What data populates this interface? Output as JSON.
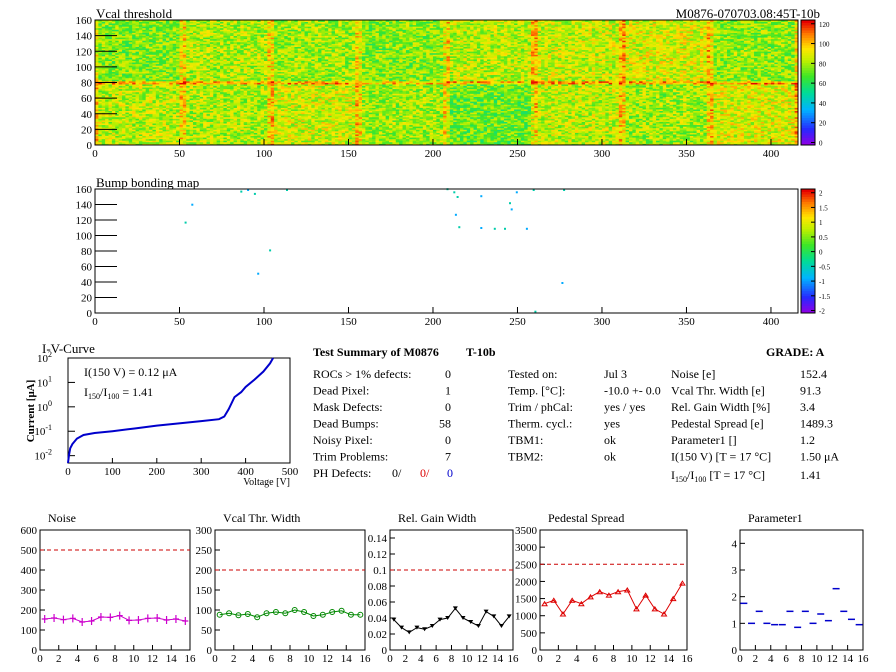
{
  "header": {
    "vcal_title": "Vcal threshold",
    "module_id": "M0876-070703.08:45T-10b",
    "bump_title": "Bump bonding map"
  },
  "chart_data": [
    {
      "type": "heatmap",
      "name": "vcal",
      "title": "Vcal threshold",
      "xlim": [
        0,
        416
      ],
      "ylim": [
        0,
        160
      ],
      "xticks": [
        "0",
        "50",
        "100",
        "150",
        "200",
        "250",
        "300",
        "350",
        "400"
      ],
      "yticks": [
        "0",
        "20",
        "40",
        "60",
        "80",
        "100",
        "120",
        "140",
        "160"
      ],
      "colorbar_ticks": [
        "0",
        "20",
        "40",
        "60",
        "80",
        "100",
        "120"
      ],
      "colorbar_max": 135,
      "roc_base_values": [
        92,
        90,
        95,
        88,
        80,
        93,
        88,
        97,
        84,
        90,
        88,
        84,
        92,
        94,
        97,
        86
      ]
    },
    {
      "type": "heatmap",
      "name": "bump",
      "title": "Bump bonding map",
      "xlim": [
        0,
        416
      ],
      "ylim": [
        0,
        160
      ],
      "xticks": [
        "0",
        "50",
        "100",
        "150",
        "200",
        "250",
        "300",
        "350",
        "400"
      ],
      "yticks": [
        "0",
        "20",
        "40",
        "60",
        "80",
        "100",
        "120",
        "140",
        "160"
      ],
      "colorbar_ticks": [
        "-2",
        "-1.5",
        "-1",
        "-0.5",
        "0",
        "0.5",
        "1",
        "1.5",
        "2"
      ],
      "points": [
        [
          57,
          141
        ],
        [
          53,
          118
        ],
        [
          86,
          158
        ],
        [
          90,
          160
        ],
        [
          94,
          155
        ],
        [
          103,
          82
        ],
        [
          96,
          52
        ],
        [
          113,
          160
        ],
        [
          208,
          161
        ],
        [
          212,
          157
        ],
        [
          214,
          151
        ],
        [
          213,
          128
        ],
        [
          215,
          112
        ],
        [
          245,
          143
        ],
        [
          246,
          135
        ],
        [
          249,
          157
        ],
        [
          255,
          110
        ],
        [
          259,
          160
        ],
        [
          260,
          3
        ],
        [
          228,
          111
        ],
        [
          236,
          110
        ],
        [
          242,
          110
        ],
        [
          228,
          152
        ],
        [
          277,
          160
        ],
        [
          276,
          40
        ]
      ]
    },
    {
      "type": "line",
      "name": "iv",
      "title": "I-V-Curve",
      "xlabel": "Voltage [V]",
      "ylabel": "Current [μA]",
      "xlim": [
        0,
        500
      ],
      "ylog": true,
      "ylim": [
        0.005,
        100
      ],
      "xticks": [
        "0",
        "100",
        "200",
        "300",
        "400",
        "500"
      ],
      "x": [
        0,
        2,
        5,
        10,
        20,
        35,
        60,
        100,
        150,
        200,
        250,
        300,
        340,
        352,
        362,
        375,
        390,
        400,
        420,
        440,
        455,
        462
      ],
      "y": [
        0.005,
        0.01,
        0.02,
        0.03,
        0.05,
        0.07,
        0.085,
        0.1,
        0.13,
        0.17,
        0.21,
        0.26,
        0.31,
        0.4,
        0.8,
        2.5,
        4,
        6.5,
        13,
        28,
        60,
        100
      ],
      "annotation_1": "I(150 V) = 0.12 μA",
      "annotation_2_main": "I",
      "annotation_2_sub1": "150",
      "annotation_2_mid": "/I",
      "annotation_2_sub2": "100",
      "annotation_2_value": "=  1.41"
    },
    {
      "type": "line",
      "name": "noise",
      "title": "Noise",
      "x": [
        0,
        1,
        2,
        3,
        4,
        5,
        6,
        7,
        8,
        9,
        10,
        11,
        12,
        13,
        14,
        15
      ],
      "values": [
        155,
        160,
        152,
        158,
        140,
        145,
        165,
        163,
        172,
        148,
        150,
        158,
        160,
        150,
        155,
        145
      ],
      "ylim": [
        0,
        600
      ],
      "yticks": [
        "0",
        "100",
        "200",
        "300",
        "400",
        "500",
        "600"
      ],
      "threshold": 500,
      "color": "#cc00cc"
    },
    {
      "type": "line",
      "name": "vcalwidth",
      "title": "Vcal Thr. Width",
      "x": [
        0,
        1,
        2,
        3,
        4,
        5,
        6,
        7,
        8,
        9,
        10,
        11,
        12,
        13,
        14,
        15
      ],
      "values": [
        88,
        92,
        87,
        90,
        82,
        92,
        95,
        92,
        100,
        95,
        85,
        88,
        95,
        98,
        88,
        88
      ],
      "ylim": [
        0,
        300
      ],
      "yticks": [
        "0",
        "50",
        "100",
        "150",
        "200",
        "250",
        "300"
      ],
      "threshold": 200,
      "color": "#008800"
    },
    {
      "type": "line",
      "name": "gainwidth",
      "title": "Rel. Gain Width",
      "x": [
        0,
        1,
        2,
        3,
        4,
        5,
        6,
        7,
        8,
        9,
        10,
        11,
        12,
        13,
        14,
        15
      ],
      "values": [
        0.038,
        0.028,
        0.022,
        0.028,
        0.026,
        0.03,
        0.038,
        0.04,
        0.052,
        0.04,
        0.035,
        0.03,
        0.048,
        0.042,
        0.03,
        0.042
      ],
      "ylim": [
        0,
        0.15
      ],
      "yticks": [
        "0",
        "0.02",
        "0.04",
        "0.06",
        "0.08",
        "0.1",
        "0.12",
        "0.14"
      ],
      "threshold": 0.1,
      "color": "#000000"
    },
    {
      "type": "line",
      "name": "pedestal",
      "title": "Pedestal Spread",
      "x": [
        0,
        1,
        2,
        3,
        4,
        5,
        6,
        7,
        8,
        9,
        10,
        11,
        12,
        13,
        14,
        15
      ],
      "values": [
        1350,
        1450,
        1050,
        1450,
        1350,
        1550,
        1700,
        1600,
        1700,
        1750,
        1200,
        1600,
        1200,
        1050,
        1500,
        1950
      ],
      "ylim": [
        0,
        3500
      ],
      "yticks": [
        "0",
        "500",
        "1000",
        "1500",
        "2000",
        "2500",
        "3000",
        "3500"
      ],
      "threshold": 2500,
      "color": "#dd0000"
    },
    {
      "type": "scatter",
      "name": "param1",
      "title": "Parameter1",
      "x": [
        0,
        1,
        2,
        3,
        4,
        5,
        6,
        7,
        8,
        9,
        10,
        11,
        12,
        13,
        14,
        15
      ],
      "values": [
        1.75,
        1.0,
        1.45,
        1.0,
        0.95,
        0.95,
        1.45,
        0.85,
        1.45,
        1.0,
        1.35,
        1.1,
        2.3,
        1.45,
        1.15,
        0.95
      ],
      "ylim": [
        0,
        4.5
      ],
      "yticks": [
        "0",
        "1",
        "2",
        "3",
        "4"
      ],
      "color": "#0000cc"
    }
  ],
  "summary": {
    "title": "Test Summary of M0876",
    "title_suffix": "T-10b",
    "grade": "GRADE:  A",
    "left": [
      {
        "label": "ROCs > 1% defects:",
        "value": "0"
      },
      {
        "label": "Dead Pixel:",
        "value": "1"
      },
      {
        "label": "Mask Defects:",
        "value": "0"
      },
      {
        "label": "Dead Bumps:",
        "value": "58"
      },
      {
        "label": "Noisy Pixel:",
        "value": "0"
      },
      {
        "label": "Trim Problems:",
        "value": "7"
      }
    ],
    "ph_label": "PH Defects:",
    "ph_values": [
      "0/",
      "0/",
      "0"
    ],
    "ph_colors": [
      "#000000",
      "#dd0000",
      "#0000cc"
    ],
    "middle": [
      {
        "label": "Tested on:",
        "value": "Jul 3"
      },
      {
        "label": "Temp. [°C]:",
        "value": "-10.0 +- 0.0"
      },
      {
        "label": "Trim / phCal:",
        "value": "yes / yes"
      },
      {
        "label": "Therm. cycl.:",
        "value": "yes"
      },
      {
        "label": "TBM1:",
        "value": "ok"
      },
      {
        "label": "TBM2:",
        "value": "ok"
      }
    ],
    "right": [
      {
        "label": "Noise [e]",
        "value": "152.4"
      },
      {
        "label": "Vcal Thr. Width [e]",
        "value": "91.3"
      },
      {
        "label": "Rel. Gain Width [%]",
        "value": "3.4"
      },
      {
        "label": "Pedestal Spread [e]",
        "value": "1489.3"
      },
      {
        "label": "Parameter1 []",
        "value": "1.2"
      },
      {
        "label": "I(150 V)  [T = 17 °C]",
        "value": "1.50 μA"
      }
    ],
    "ratio_main": "I",
    "ratio_sub1": "150",
    "ratio_mid": "/I",
    "ratio_sub2": "100",
    "ratio_tail": "  [T = 17 °C]",
    "ratio_value": "1.41"
  },
  "small_xticks": [
    "0",
    "2",
    "4",
    "6",
    "8",
    "10",
    "12",
    "14",
    "16"
  ]
}
